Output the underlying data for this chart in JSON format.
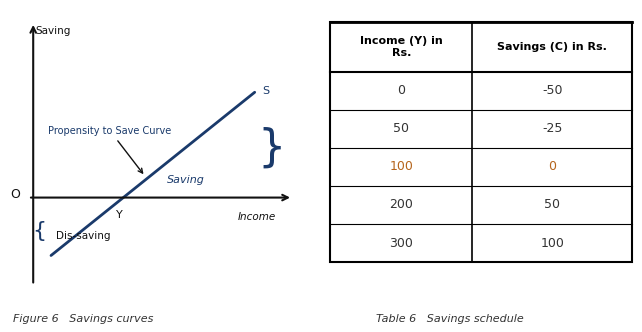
{
  "figure_caption": "Figure 6   Savings curves",
  "table_caption": "Table 6   Savings schedule",
  "table_header": [
    "Income (Y) in\nRs.",
    "Savings (C) in Rs."
  ],
  "table_data": [
    [
      "0",
      "-50"
    ],
    [
      "50",
      "-25"
    ],
    [
      "100",
      "0"
    ],
    [
      "200",
      "50"
    ],
    [
      "300",
      "100"
    ]
  ],
  "highlight_row": 2,
  "highlight_color": "#b5651d",
  "normal_color": "#333333",
  "header_color": "#000000",
  "line_color": "#1a3a6b",
  "axis_color": "#111111",
  "bg_color": "#ffffff",
  "label_saving_axis": "Saving",
  "label_income": "Income",
  "label_dissaving": "Dis-saving",
  "label_propensity": "Propensity to Save Curve",
  "label_saving_area": "Saving",
  "label_S": "S",
  "label_O": "O",
  "label_Y": "Y"
}
